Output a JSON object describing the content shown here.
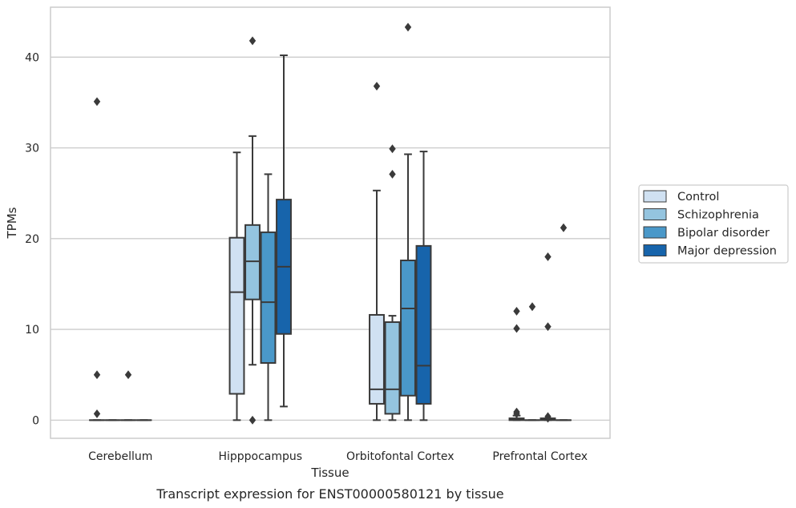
{
  "caption": "Transcript expression for ENST00000580121 by tissue",
  "chart_data": {
    "type": "box",
    "xlabel": "Tissue",
    "ylabel": "TPMs",
    "ylim": [
      -2,
      45.5
    ],
    "yticks": [
      0,
      10,
      20,
      30,
      40
    ],
    "grid": "horizontal",
    "legend_placement": "right",
    "categories": [
      "Cerebellum",
      "Hipppocampus",
      "Orbitofontal Cortex",
      "Prefrontal Cortex"
    ],
    "series": [
      {
        "name": "Control",
        "color": "#d0e1f2",
        "boxes": [
          {
            "whislo": 0,
            "q1": 0,
            "med": 0,
            "q3": 0,
            "whishi": 0,
            "fliers": [
              35.1,
              5.0,
              0.7
            ]
          },
          {
            "whislo": 0,
            "q1": 2.9,
            "med": 14.1,
            "q3": 20.1,
            "whishi": 29.5,
            "fliers": []
          },
          {
            "whislo": 0,
            "q1": 1.8,
            "med": 3.4,
            "q3": 11.6,
            "whishi": 25.3,
            "fliers": [
              36.8
            ]
          },
          {
            "whislo": 0,
            "q1": 0,
            "med": 0.1,
            "q3": 0.2,
            "whishi": 0.5,
            "fliers": [
              12.0,
              10.1,
              0.9,
              0.7
            ]
          }
        ]
      },
      {
        "name": "Schizophrenia",
        "color": "#94c4df",
        "boxes": [
          {
            "whislo": 0,
            "q1": 0,
            "med": 0,
            "q3": 0,
            "whishi": 0,
            "fliers": []
          },
          {
            "whislo": 6.1,
            "q1": 13.3,
            "med": 17.5,
            "q3": 21.5,
            "whishi": 31.3,
            "fliers": [
              41.8,
              0.0
            ]
          },
          {
            "whislo": 0,
            "q1": 0.7,
            "med": 3.4,
            "q3": 10.8,
            "whishi": 11.5,
            "fliers": [
              29.9,
              27.1
            ]
          },
          {
            "whislo": 0,
            "q1": 0,
            "med": 0,
            "q3": 0,
            "whishi": 0,
            "fliers": [
              12.5
            ]
          }
        ]
      },
      {
        "name": "Bipolar disorder",
        "color": "#4a98c9",
        "boxes": [
          {
            "whislo": 0,
            "q1": 0,
            "med": 0,
            "q3": 0,
            "whishi": 0,
            "fliers": [
              5.0
            ]
          },
          {
            "whislo": 0,
            "q1": 6.3,
            "med": 13.0,
            "q3": 20.7,
            "whishi": 27.1,
            "fliers": []
          },
          {
            "whislo": 0,
            "q1": 2.7,
            "med": 12.3,
            "q3": 17.6,
            "whishi": 29.3,
            "fliers": [
              43.3
            ]
          },
          {
            "whislo": 0,
            "q1": 0,
            "med": 0.1,
            "q3": 0.2,
            "whishi": 0.2,
            "fliers": [
              18.0,
              10.3,
              0.4,
              0.2
            ]
          }
        ]
      },
      {
        "name": "Major depression",
        "color": "#1764ab",
        "boxes": [
          {
            "whislo": 0,
            "q1": 0,
            "med": 0,
            "q3": 0,
            "whishi": 0,
            "fliers": []
          },
          {
            "whislo": 1.5,
            "q1": 9.5,
            "med": 16.9,
            "q3": 24.3,
            "whishi": 40.2,
            "fliers": []
          },
          {
            "whislo": 0,
            "q1": 1.8,
            "med": 6.0,
            "q3": 19.2,
            "whishi": 29.6,
            "fliers": []
          },
          {
            "whislo": 0,
            "q1": 0,
            "med": 0,
            "q3": 0,
            "whishi": 0,
            "fliers": [
              21.2
            ]
          }
        ]
      }
    ]
  }
}
